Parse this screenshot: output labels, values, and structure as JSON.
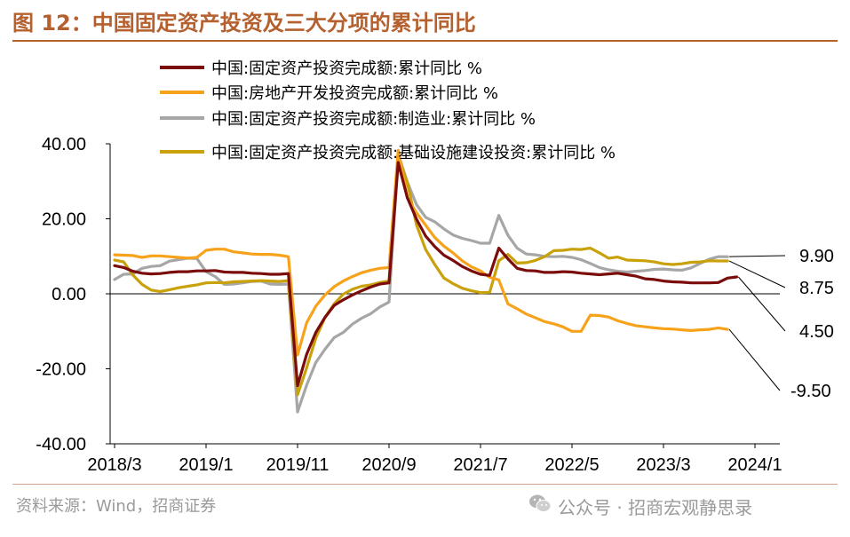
{
  "title": "图 12：中国固定资产投资及三大分项的累计同比",
  "source": "资料来源：Wind，招商证券",
  "watermark": "公众号 · 招商宏观静思录",
  "chart_data": {
    "type": "line",
    "ylim": [
      -40,
      40
    ],
    "yticks": [
      "40.00",
      "20.00",
      "0.00",
      "-20.00",
      "-40.00"
    ],
    "ytick_values": [
      40,
      20,
      0,
      -20,
      -40
    ],
    "xtick_labels": [
      "2018/3",
      "2019/1",
      "2019/11",
      "2020/9",
      "2021/7",
      "2022/5",
      "2023/3",
      "2024/1"
    ],
    "xtick_index": [
      0,
      10,
      20,
      30,
      40,
      50,
      60,
      70
    ],
    "grid": false,
    "legend_position": "top",
    "series": [
      {
        "name": "中国:固定资产投资完成额:累计同比 %",
        "color": "#7a0c0c",
        "end_label": "4.50",
        "values": [
          7.5,
          7.0,
          6.0,
          5.5,
          5.3,
          5.4,
          5.7,
          5.9,
          5.9,
          6.1,
          6.1,
          6.2,
          5.8,
          5.7,
          5.7,
          5.5,
          5.4,
          5.2,
          5.2,
          5.4,
          -24.5,
          -16.1,
          -10.3,
          -6.3,
          -3.1,
          -1.6,
          -0.3,
          0.8,
          1.8,
          2.6,
          2.9,
          35.0,
          25.6,
          19.9,
          15.4,
          12.6,
          10.3,
          8.9,
          7.3,
          6.1,
          5.2,
          4.9,
          12.2,
          9.3,
          6.8,
          6.2,
          6.1,
          5.7,
          5.7,
          5.9,
          5.8,
          5.5,
          5.3,
          5.1,
          5.3,
          5.5,
          5.1,
          4.7,
          4.0,
          3.8,
          3.4,
          3.2,
          3.1,
          2.9,
          2.9,
          2.9,
          3.0,
          4.2,
          4.5
        ]
      },
      {
        "name": "中国:房地产开发投资完成额:累计同比 %",
        "color": "#f7a21b",
        "end_label": "-9.50",
        "values": [
          10.4,
          10.3,
          10.2,
          9.7,
          10.1,
          10.1,
          9.9,
          9.7,
          9.5,
          9.7,
          11.6,
          11.9,
          11.9,
          11.2,
          10.9,
          10.6,
          10.5,
          10.5,
          10.3,
          9.9,
          -16.3,
          -7.7,
          -3.3,
          -0.3,
          1.9,
          3.4,
          4.6,
          5.6,
          6.3,
          6.8,
          7.0,
          38.3,
          25.6,
          21.6,
          18.3,
          15.0,
          12.7,
          10.9,
          8.8,
          7.2,
          6.1,
          4.4,
          3.7,
          -2.7,
          -4.0,
          -5.4,
          -6.4,
          -7.4,
          -8.0,
          -8.8,
          -10.0,
          -10.0,
          -5.7,
          -5.8,
          -6.2,
          -7.2,
          -7.9,
          -8.5,
          -8.8,
          -9.1,
          -9.3,
          -9.4,
          -9.6,
          -9.8,
          -9.6,
          -9.5,
          -9.1,
          -9.5
        ]
      },
      {
        "name": "中国:固定资产投资完成额:制造业:累计同比 %",
        "color": "#a6a6a6",
        "end_label": "9.90",
        "values": [
          3.8,
          5.2,
          5.3,
          6.8,
          7.3,
          7.5,
          8.7,
          9.1,
          9.5,
          9.4,
          5.9,
          4.6,
          2.5,
          2.6,
          2.9,
          3.3,
          3.4,
          2.6,
          2.5,
          2.6,
          -31.5,
          -24.3,
          -18.3,
          -14.8,
          -11.7,
          -10.3,
          -8.1,
          -6.5,
          -5.3,
          -3.5,
          -2.2,
          37.3,
          29.8,
          23.8,
          20.4,
          19.2,
          17.3,
          15.7,
          14.8,
          14.2,
          13.5,
          13.5,
          20.9,
          15.6,
          12.2,
          10.6,
          10.4,
          10.0,
          9.9,
          10.0,
          9.7,
          9.1,
          8.1,
          7.0,
          6.4,
          6.0,
          5.8,
          6.0,
          6.2,
          6.5,
          6.6,
          6.4,
          6.3,
          6.9,
          8.1,
          9.2,
          9.9,
          9.9
        ]
      },
      {
        "name": "中国:固定资产投资完成额:基础设施建设投资:累计同比 %",
        "color": "#c9a10a",
        "end_label": "8.75",
        "values": [
          9.0,
          8.5,
          5.0,
          2.5,
          1.0,
          0.6,
          1.1,
          1.6,
          2.0,
          2.4,
          2.9,
          3.0,
          2.9,
          3.2,
          3.3,
          3.4,
          3.5,
          3.4,
          3.3,
          3.5,
          -26.9,
          -19.7,
          -11.8,
          -6.3,
          -2.7,
          -0.1,
          1.2,
          2.0,
          2.4,
          3.0,
          3.4,
          36.6,
          29.7,
          18.4,
          11.8,
          7.8,
          4.2,
          2.7,
          1.5,
          0.8,
          0.3,
          0.4,
          8.8,
          10.5,
          8.2,
          8.3,
          8.9,
          9.9,
          11.5,
          11.6,
          11.9,
          11.8,
          12.2,
          10.9,
          9.5,
          9.8,
          9.0,
          8.9,
          8.8,
          8.5,
          8.0,
          7.8,
          8.0,
          8.4,
          8.5,
          8.8,
          8.75,
          8.75
        ]
      }
    ]
  }
}
